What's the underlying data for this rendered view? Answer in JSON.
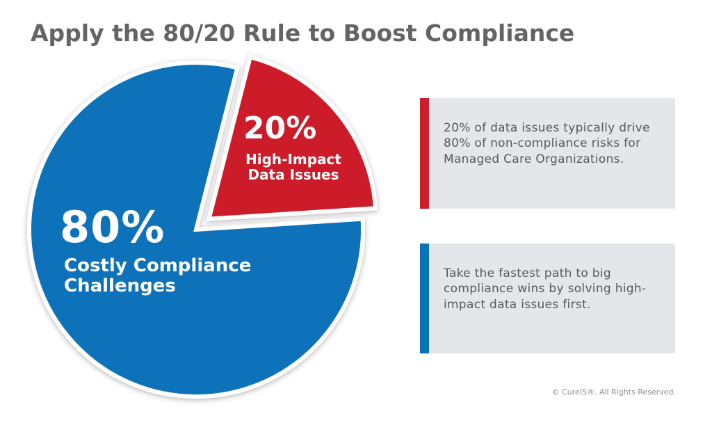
{
  "title": "Apply the 80/20 Rule to Boost Compliance",
  "chart_data": {
    "type": "pie",
    "slices": [
      {
        "value": 80,
        "percent_label": "80%",
        "label_lines": [
          "Costly Compliance",
          "Challenges"
        ],
        "color": "#0a72b9"
      },
      {
        "value": 20,
        "percent_label": "20%",
        "label_lines": [
          "High-Impact",
          "Data Issues"
        ],
        "color": "#cc1f2b",
        "exploded": true
      }
    ]
  },
  "cards": [
    {
      "text": "20% of data issues typically drive 80% of non-compliance risks for Managed Care Organizations.",
      "accent": "#cc1f2b"
    },
    {
      "text": "Take the fastest path to big compliance wins by solving high-impact data issues first.",
      "accent": "#0a72b9"
    }
  ],
  "copyright": "© CureIS®. All Rights Reserved."
}
